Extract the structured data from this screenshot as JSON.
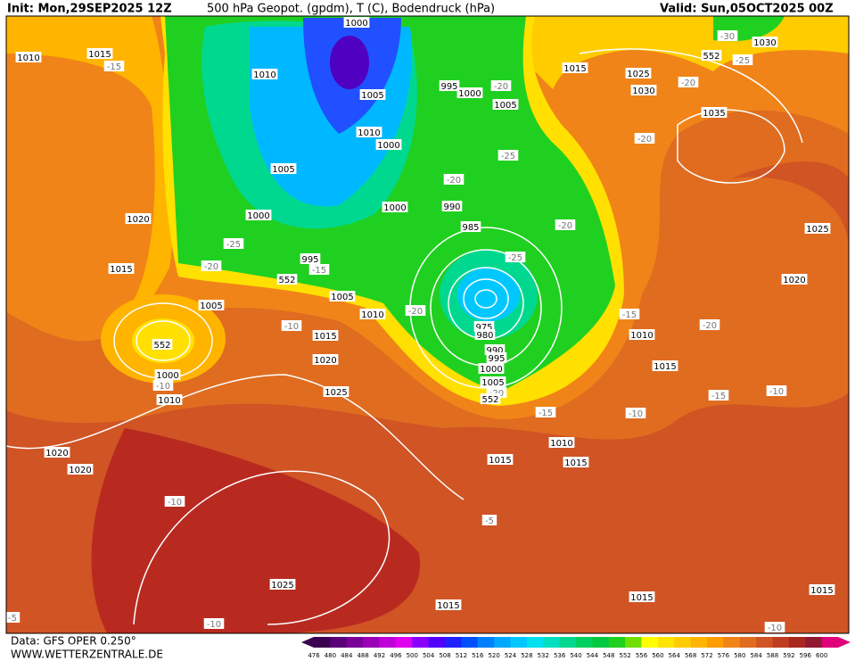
{
  "header": {
    "init": "Init: Mon,29SEP2025 12Z",
    "title": "500 hPa Geopot. (gpdm), T (C), Bodendruck (hPa)",
    "valid": "Valid: Sun,05OCT2025 00Z"
  },
  "footer": {
    "data": "Data: GFS OPER 0.250°",
    "site": "WWW.WETTERZENTRALE.DE"
  },
  "colorbar": {
    "labels": [
      476,
      480,
      484,
      488,
      492,
      496,
      500,
      504,
      508,
      512,
      516,
      520,
      524,
      528,
      532,
      536,
      540,
      544,
      548,
      552,
      556,
      560,
      564,
      568,
      572,
      576,
      580,
      584,
      588,
      592,
      596,
      600
    ],
    "colors": [
      "#3c0050",
      "#5a0078",
      "#7a0098",
      "#9a00b8",
      "#c000d8",
      "#e000f0",
      "#8a00ff",
      "#5000ff",
      "#2020ff",
      "#0050ff",
      "#0080ff",
      "#00a8ff",
      "#00c8ff",
      "#00e0f0",
      "#00e0c0",
      "#00d890",
      "#00d060",
      "#00c840",
      "#20d020",
      "#70e000",
      "#ffff00",
      "#ffe400",
      "#ffcc00",
      "#ffb400",
      "#ff9c00",
      "#f08418",
      "#e06c20",
      "#d05424",
      "#c03c20",
      "#a82820",
      "#901830",
      "#e0007a"
    ]
  },
  "map": {
    "isobar_labels": [
      1010,
      1015,
      1010,
      1000,
      1005,
      1010,
      1000,
      1005,
      1000,
      1000,
      995,
      1000,
      1005,
      1015,
      1025,
      1030,
      1035,
      1030,
      1020,
      1015,
      995,
      1005,
      1005,
      1010,
      1015,
      1020,
      1000,
      1010,
      1025,
      990,
      985,
      975,
      980,
      990,
      995,
      1000,
      1005,
      1010,
      1015,
      1025,
      1020,
      1010,
      1015,
      1015,
      1020,
      1020,
      1025,
      1015,
      1015,
      1015
    ],
    "temperature_labels": [
      -15,
      -30,
      -25,
      -20,
      -20,
      -20,
      -25,
      -20,
      -20,
      -25,
      -25,
      -20,
      -15,
      -10,
      -20,
      -15,
      -20,
      -10,
      -15,
      -10,
      -15,
      -10,
      -5,
      -10,
      -10,
      -5,
      -10,
      -20
    ],
    "height_labels": [
      552,
      552,
      552,
      552
    ]
  }
}
